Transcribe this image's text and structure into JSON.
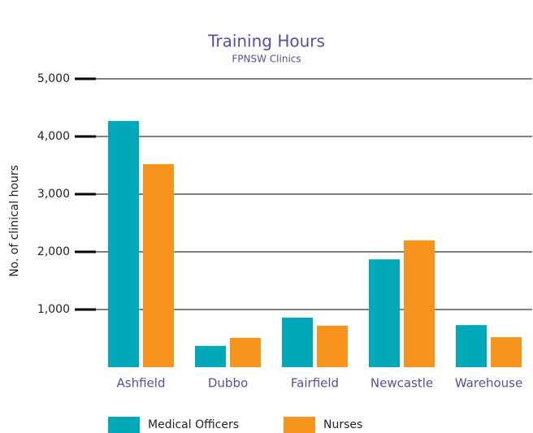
{
  "chart_data": {
    "type": "bar",
    "title": "Training Hours",
    "subtitle": "FPNSW Clinics",
    "y_label": "No. of clinical hours",
    "categories": [
      "Ashfield",
      "Dubbo",
      "Fairfield",
      "Newcastle",
      "Warehouse"
    ],
    "series": [
      {
        "name": "Medical Officers",
        "color": "#00a9b7",
        "values": [
          4270,
          370,
          860,
          1870,
          730
        ]
      },
      {
        "name": "Nurses",
        "color": "#f7941d",
        "values": [
          3520,
          510,
          720,
          2200,
          520
        ]
      }
    ],
    "ylim": [
      0,
      5000
    ],
    "yticks": [
      {
        "value": 1000,
        "label": "1,000"
      },
      {
        "value": 2000,
        "label": "2,000"
      },
      {
        "value": 3000,
        "label": "3,000"
      },
      {
        "value": 4000,
        "label": "4,000"
      },
      {
        "value": 5000,
        "label": "5,000"
      }
    ],
    "grid": true,
    "legend": "bottom"
  }
}
